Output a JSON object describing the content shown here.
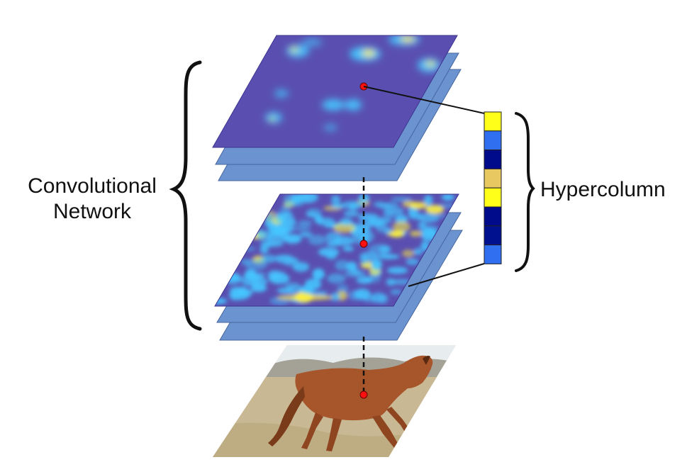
{
  "labels": {
    "network_line1": "Convolutional",
    "network_line2": "Network",
    "hypercolumn": "Hypercolumn"
  },
  "hypercolumn_cells": [
    {
      "color": "#ffff1a"
    },
    {
      "color": "#2f6ff0"
    },
    {
      "color": "#000b8c"
    },
    {
      "color": "#e8c860"
    },
    {
      "color": "#ffff1a"
    },
    {
      "color": "#000b8c"
    },
    {
      "color": "#00118f"
    },
    {
      "color": "#2f6ff0"
    }
  ],
  "colors": {
    "feature_map_base": "#5a4fb0",
    "feature_map_back": "#6b93cf",
    "activation_hot": "#fff03a",
    "activation_mid": "#45c6ff",
    "sample_point": "#ff1010",
    "ground": "#cbbd98",
    "sky": "#e7ecef",
    "horse": "#a7552a"
  }
}
